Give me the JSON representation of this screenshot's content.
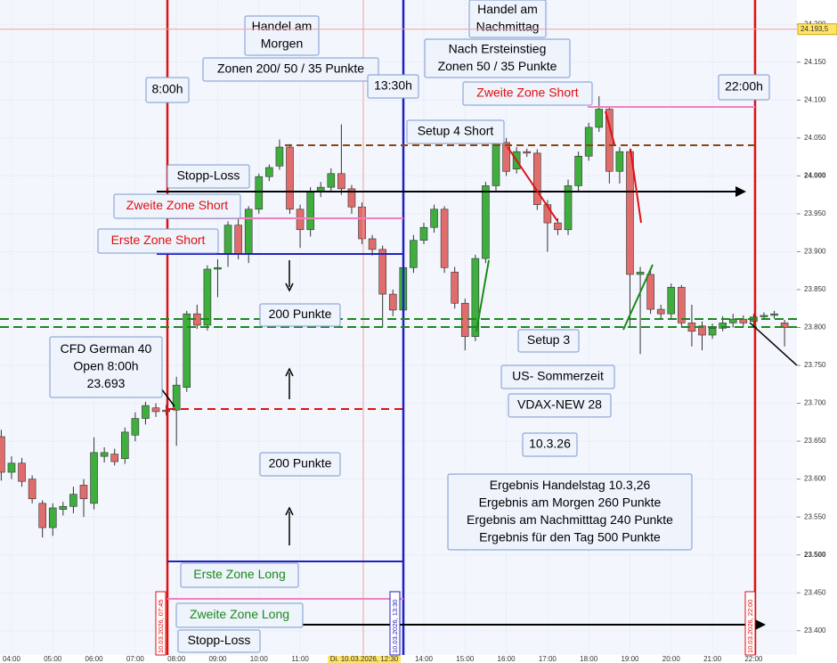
{
  "chart_data": {
    "type": "candlestick",
    "x": [
      3.75,
      4,
      4.25,
      4.5,
      4.75,
      5,
      5.25,
      5.5,
      5.75,
      6,
      6.25,
      6.5,
      6.75,
      7,
      7.25,
      7.5,
      7.75,
      8,
      8.25,
      8.5,
      8.75,
      9,
      9.25,
      9.5,
      9.75,
      10,
      10.25,
      10.5,
      10.75,
      11,
      11.25,
      11.5,
      11.75,
      12,
      12.25,
      12.5,
      12.75,
      13,
      13.25,
      13.5,
      13.75,
      14,
      14.25,
      14.5,
      14.75,
      15,
      15.25,
      15.5,
      15.75,
      16,
      16.25,
      16.5,
      16.75,
      17,
      17.25,
      17.5,
      17.75,
      18,
      18.25,
      18.5,
      18.75,
      19,
      19.25,
      19.5,
      19.75,
      20,
      20.25,
      20.5,
      20.75,
      21,
      21.25,
      21.5,
      21.75,
      22,
      22.25,
      22.5,
      22.75
    ],
    "open": [
      23656,
      23609,
      23621,
      23600,
      23568,
      23536,
      23560,
      23564,
      23592,
      23568,
      23630,
      23633,
      23627,
      23658,
      23680,
      23694,
      23691,
      23691,
      23721,
      23818,
      23803,
      23877,
      23897,
      23935,
      23897,
      23956,
      23999,
      24013,
      24038,
      23956,
      23929,
      23979,
      23985,
      24003,
      23983,
      23959,
      23917,
      23903,
      23844,
      23823,
      23879,
      23915,
      23932,
      23956,
      23873,
      23832,
      23788,
      23891,
      23987,
      24044,
      24009,
      24032,
      24030,
      23962,
      23938,
      23929,
      23987,
      24026,
      24064,
      24088,
      24006,
      24032,
      23870,
      23870,
      23824,
      23818,
      23853,
      23806,
      23802,
      23790,
      23799,
      23806,
      23811,
      23808,
      23814,
      23816,
      23806
    ],
    "high": [
      23665,
      23630,
      23628,
      23605,
      23572,
      23568,
      23570,
      23590,
      23600,
      23655,
      23642,
      23640,
      23668,
      23688,
      23702,
      23700,
      23698,
      23735,
      23822,
      23830,
      23882,
      23890,
      23940,
      23945,
      23960,
      24003,
      24015,
      24048,
      24042,
      23962,
      23985,
      23992,
      24010,
      24068,
      23988,
      23965,
      23922,
      23908,
      23850,
      23885,
      23922,
      23938,
      23962,
      23960,
      23880,
      23838,
      23896,
      23992,
      24050,
      24050,
      24038,
      24036,
      24035,
      23968,
      23944,
      23995,
      24032,
      24070,
      24105,
      24092,
      24038,
      24036,
      23880,
      23876,
      23830,
      23858,
      23856,
      23830,
      23808,
      23805,
      23815,
      23818,
      23816,
      23818,
      23820,
      23822,
      23810
    ],
    "low": [
      23598,
      23600,
      23590,
      23568,
      23523,
      23525,
      23552,
      23555,
      23550,
      23560,
      23622,
      23618,
      23620,
      23650,
      23672,
      23682,
      23684,
      23644,
      23715,
      23798,
      23796,
      23840,
      23880,
      23890,
      23885,
      23950,
      23993,
      24008,
      23950,
      23905,
      23920,
      23972,
      23978,
      23975,
      23950,
      23910,
      23895,
      23800,
      23815,
      23818,
      23872,
      23910,
      23925,
      23872,
      23825,
      23770,
      23782,
      23885,
      23980,
      24000,
      24003,
      24025,
      23955,
      23900,
      23922,
      23922,
      23980,
      24020,
      24058,
      23990,
      23990,
      23800,
      23765,
      23818,
      23812,
      23812,
      23800,
      23775,
      23770,
      23785,
      23795,
      23800,
      23800,
      23802,
      23810,
      23812,
      23775
    ],
    "close": [
      23609,
      23621,
      23597,
      23574,
      23536,
      23562,
      23564,
      23580,
      23574,
      23635,
      23635,
      23623,
      23662,
      23680,
      23697,
      23689,
      23689,
      23724,
      23818,
      23803,
      23877,
      23879,
      23935,
      23897,
      23956,
      23999,
      24011,
      24038,
      23956,
      23929,
      23979,
      23985,
      24003,
      23983,
      23959,
      23917,
      23903,
      23844,
      23823,
      23879,
      23915,
      23932,
      23956,
      23879,
      23832,
      23788,
      23891,
      23987,
      24044,
      24006,
      24032,
      24030,
      23962,
      23938,
      23929,
      23987,
      24026,
      24064,
      24088,
      24006,
      24032,
      23870,
      23873,
      23824,
      23818,
      23853,
      23806,
      23795,
      23790,
      23799,
      23806,
      23811,
      23806,
      23814,
      23816,
      23818,
      23800
    ],
    "up_color": "#3fae3f",
    "down_color": "#e06c6c",
    "xlim": [
      3.72,
      23.05
    ],
    "ylim": [
      23368,
      24232
    ],
    "xticks": [
      {
        "value": 4,
        "label": "04:00"
      },
      {
        "value": 5,
        "label": "05:00"
      },
      {
        "value": 6,
        "label": "06:00"
      },
      {
        "value": 7,
        "label": "07:00"
      },
      {
        "value": 8,
        "label": "08:00"
      },
      {
        "value": 9,
        "label": "09:00"
      },
      {
        "value": 10,
        "label": "10:00"
      },
      {
        "value": 11,
        "label": "11:00"
      },
      {
        "value": 14,
        "label": "14:00"
      },
      {
        "value": 15,
        "label": "15:00"
      },
      {
        "value": 16,
        "label": "16:00"
      },
      {
        "value": 17,
        "label": "17:00"
      },
      {
        "value": 18,
        "label": "18:00"
      },
      {
        "value": 19,
        "label": "19:00"
      },
      {
        "value": 20,
        "label": "20:00"
      },
      {
        "value": 21,
        "label": "21:00"
      },
      {
        "value": 22,
        "label": "22:00"
      }
    ],
    "yticks": [
      {
        "value": 24200,
        "label": "24.200"
      },
      {
        "value": 24150,
        "label": "24.150"
      },
      {
        "value": 24100,
        "label": "24.100"
      },
      {
        "value": 24050,
        "label": "24.050"
      },
      {
        "value": 24000,
        "label": "24.000"
      },
      {
        "value": 23950,
        "label": "23.950"
      },
      {
        "value": 23900,
        "label": "23.900"
      },
      {
        "value": 23850,
        "label": "23.850"
      },
      {
        "value": 23800,
        "label": "23.800"
      },
      {
        "value": 23750,
        "label": "23.750"
      },
      {
        "value": 23700,
        "label": "23.700"
      },
      {
        "value": 23650,
        "label": "23.650"
      },
      {
        "value": 23600,
        "label": "23.600"
      },
      {
        "value": 23550,
        "label": "23.550"
      },
      {
        "value": 23500,
        "label": "23.500"
      },
      {
        "value": 23450,
        "label": "23.450"
      },
      {
        "value": 23400,
        "label": "23.400"
      }
    ],
    "grid": true,
    "last_price": {
      "value": 24193.5,
      "label": "24.193,5"
    },
    "crosshair_label": "Di. 10.03.2026, 12:30",
    "date_labels": [
      "10.03.2026, 07:45",
      "10.03.2026, 13:30",
      "10.03.2026, 22:00"
    ],
    "annotations": [
      {
        "lines": [
          "Handel am",
          "Morgen"
        ],
        "color": "#000000"
      },
      {
        "lines": [
          "Zonen 200/ 50 / 35 Punkte"
        ],
        "color": "#000000"
      },
      {
        "lines": [
          "8:00h"
        ],
        "color": "#000000"
      },
      {
        "lines": [
          "13:30h"
        ],
        "color": "#000000"
      },
      {
        "lines": [
          "Handel am",
          "Nachmittag"
        ],
        "color": "#000000"
      },
      {
        "lines": [
          "Nach Ersteinstieg",
          "Zonen 50 / 35 Punkte"
        ],
        "color": "#000000"
      },
      {
        "lines": [
          "Zweite Zone Short"
        ],
        "color": "#e01010"
      },
      {
        "lines": [
          "22:00h"
        ],
        "color": "#000000"
      },
      {
        "lines": [
          "Setup 4 Short"
        ],
        "color": "#000000"
      },
      {
        "lines": [
          "Stopp-Loss"
        ],
        "color": "#000000"
      },
      {
        "lines": [
          "Zweite Zone Short"
        ],
        "color": "#e01010"
      },
      {
        "lines": [
          "Erste Zone Short"
        ],
        "color": "#e01010"
      },
      {
        "lines": [
          "200 Punkte"
        ],
        "color": "#000000"
      },
      {
        "lines": [
          "CFD German 40",
          "Open 8:00h",
          "23.693"
        ],
        "color": "#000000"
      },
      {
        "lines": [
          "Setup 3"
        ],
        "color": "#000000"
      },
      {
        "lines": [
          "US- Sommerzeit"
        ],
        "color": "#000000"
      },
      {
        "lines": [
          "VDAX-NEW 28"
        ],
        "color": "#000000"
      },
      {
        "lines": [
          "10.3.26"
        ],
        "color": "#000000"
      },
      {
        "lines": [
          "200 Punkte"
        ],
        "color": "#000000"
      },
      {
        "lines": [
          "Ergebnis Handelstag 10.3,26",
          "Ergebnis am Morgen  260 Punkte",
          "Ergebnis am Nachmitttag 240 Punkte",
          "Ergebnis für den Tag 500 Punkte"
        ],
        "color": "#000000"
      },
      {
        "lines": [
          "Erste Zone Long"
        ],
        "color": "#1a8a1a"
      },
      {
        "lines": [
          "Zweite Zone Long"
        ],
        "color": "#1a8a1a"
      },
      {
        "lines": [
          "Stopp-Loss"
        ],
        "color": "#000000"
      }
    ]
  }
}
